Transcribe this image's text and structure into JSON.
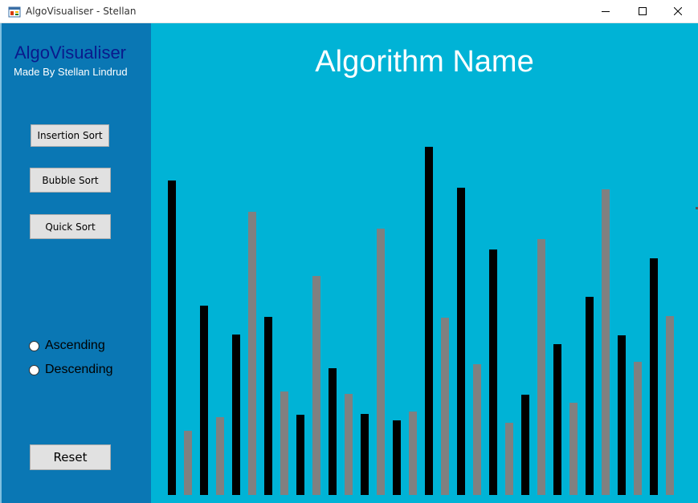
{
  "window": {
    "title": "AlgoVisualiser - Stellan",
    "icon": "winforms-app-icon",
    "controls": [
      "minimize-icon",
      "maximize-icon",
      "close-icon"
    ]
  },
  "sidebar": {
    "app_title": "AlgoVisualiser",
    "subtitle": "Made By Stellan Lindrud",
    "buttons": {
      "insertion": "Insertion Sort",
      "bubble": "Bubble Sort",
      "quick": "Quick Sort",
      "reset": "Reset"
    },
    "order": {
      "ascending": "Ascending",
      "descending": "Descending",
      "selected": null
    }
  },
  "main": {
    "algorithm_name": "Algorithm Name"
  },
  "bars": {
    "heights": [
      392,
      80,
      236,
      97,
      200,
      353,
      222,
      129,
      100,
      273,
      158,
      126,
      101,
      332,
      93,
      104,
      434,
      221,
      383,
      163,
      306,
      90,
      125,
      319,
      188,
      115,
      247,
      381,
      199,
      166,
      295,
      223
    ],
    "colors": {
      "even": "#000000",
      "odd": "#808080"
    }
  },
  "colors": {
    "sidebar": "#0a77b4",
    "canvas": "#00b3d6",
    "app_title": "#0a1a8c"
  }
}
